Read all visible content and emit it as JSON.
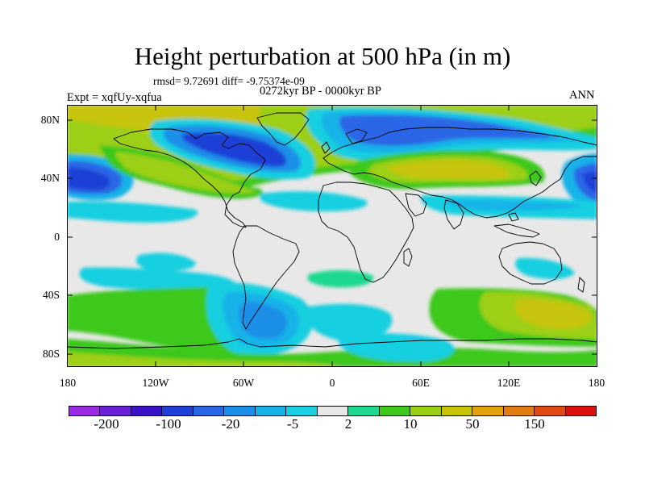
{
  "title": "Height perturbation at 500 hPa (in m)",
  "stats": "rmsd= 9.72691 diff= -9.75374e-09",
  "experiment": "Expt = xqfUy-xqfua",
  "period": "0272kyr BP - 0000kyr BP",
  "season": "ANN",
  "lat_labels": [
    "80N",
    "40N",
    "0",
    "40S",
    "80S"
  ],
  "lon_labels": [
    "180",
    "120W",
    "60W",
    "0",
    "60E",
    "120E",
    "180"
  ],
  "colorbar": {
    "colors": [
      "#9a2be2",
      "#6a1fd8",
      "#3c12c9",
      "#1f3fd6",
      "#2b66e6",
      "#1b8fe8",
      "#18b2e8",
      "#19cfe0",
      "#e8e8e8",
      "#1fd88f",
      "#3ec81c",
      "#9ccf14",
      "#c6c409",
      "#e0a30d",
      "#e27b12",
      "#e24a14",
      "#d91010"
    ],
    "labels": [
      "-200",
      "-100",
      "-20",
      "-5",
      "2",
      "10",
      "50",
      "150"
    ]
  }
}
